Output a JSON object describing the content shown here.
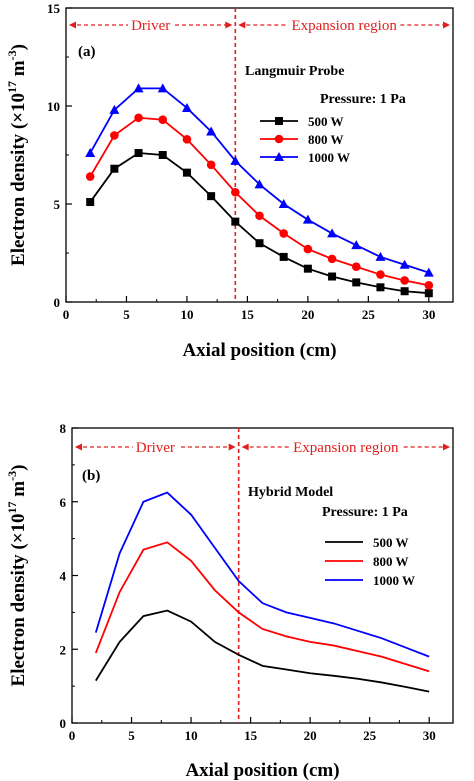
{
  "chart_data": [
    {
      "type": "line",
      "panel": "(a)",
      "xlabel": "Axial position (cm)",
      "ylabel_main": "Electron density (×10",
      "ylabel_exp": "17",
      "ylabel_unit": " m",
      "ylabel_unit_exp": "-3",
      "ylabel_close": ")",
      "xlim": [
        0,
        32
      ],
      "ylim": [
        0,
        15
      ],
      "xticks": [
        0,
        5,
        10,
        15,
        20,
        25,
        30
      ],
      "yticks": [
        0,
        5,
        10,
        15
      ],
      "annotation": "Langmuir Probe",
      "legend_title": "Pressure: 1 Pa",
      "divider_x": 14,
      "region_left": "Driver",
      "region_right": "Expansion region",
      "x": [
        2,
        4,
        6,
        8,
        10,
        12,
        14,
        16,
        18,
        20,
        22,
        24,
        26,
        28,
        30
      ],
      "series": [
        {
          "name": "500 W",
          "color": "#000000",
          "marker": "square",
          "values": [
            5.1,
            6.8,
            7.6,
            7.5,
            6.6,
            5.4,
            4.1,
            3.0,
            2.3,
            1.7,
            1.3,
            1.0,
            0.75,
            0.55,
            0.45
          ]
        },
        {
          "name": "800 W",
          "color": "#ff0000",
          "marker": "circle",
          "values": [
            6.4,
            8.5,
            9.4,
            9.3,
            8.3,
            7.0,
            5.6,
            4.4,
            3.5,
            2.7,
            2.2,
            1.8,
            1.4,
            1.1,
            0.85
          ]
        },
        {
          "name": "1000 W",
          "color": "#0000ff",
          "marker": "triangle",
          "values": [
            7.6,
            9.8,
            10.9,
            10.9,
            9.9,
            8.7,
            7.2,
            6.0,
            5.0,
            4.2,
            3.5,
            2.9,
            2.3,
            1.9,
            1.5
          ]
        }
      ]
    },
    {
      "type": "line",
      "panel": "(b)",
      "xlabel": "Axial position (cm)",
      "ylabel_main": "Electron density (×10",
      "ylabel_exp": "17",
      "ylabel_unit": " m",
      "ylabel_unit_exp": "-3",
      "ylabel_close": ")",
      "xlim": [
        0,
        32
      ],
      "ylim": [
        0,
        8
      ],
      "xticks": [
        0,
        5,
        10,
        15,
        20,
        25,
        30
      ],
      "yticks": [
        0,
        2,
        4,
        6,
        8
      ],
      "annotation": "Hybrid Model",
      "legend_title": "Pressure: 1 Pa",
      "divider_x": 14,
      "region_left": "Driver",
      "region_right": "Expansion region",
      "x": [
        2,
        4,
        6,
        8,
        10,
        12,
        14,
        16,
        18,
        20,
        22,
        24,
        26,
        28,
        30
      ],
      "series": [
        {
          "name": "500 W",
          "color": "#000000",
          "marker": "none",
          "values": [
            1.15,
            2.2,
            2.9,
            3.05,
            2.75,
            2.2,
            1.85,
            1.55,
            1.45,
            1.35,
            1.28,
            1.2,
            1.1,
            0.98,
            0.85
          ]
        },
        {
          "name": "800 W",
          "color": "#ff0000",
          "marker": "none",
          "values": [
            1.9,
            3.55,
            4.7,
            4.9,
            4.4,
            3.6,
            3.0,
            2.55,
            2.35,
            2.2,
            2.1,
            1.95,
            1.8,
            1.6,
            1.4
          ]
        },
        {
          "name": "1000 W",
          "color": "#0000ff",
          "marker": "none",
          "values": [
            2.45,
            4.6,
            6.0,
            6.25,
            5.65,
            4.75,
            3.85,
            3.25,
            3.0,
            2.85,
            2.7,
            2.5,
            2.3,
            2.05,
            1.8
          ]
        }
      ]
    }
  ]
}
